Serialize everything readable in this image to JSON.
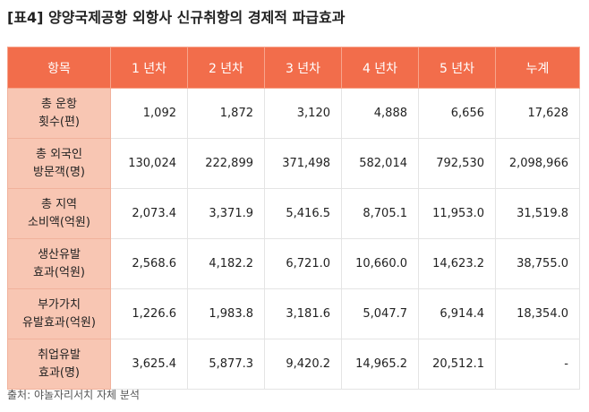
{
  "title": "[표4] 양양국제공항 외항사 신규취항의 경제적 파급효과",
  "table": {
    "header": [
      "항목",
      "1 년차",
      "2 년차",
      "3 년차",
      "4 년차",
      "5 년차",
      "누계"
    ],
    "rows": [
      [
        [
          "총 운항",
          "횟수(편)"
        ],
        "1,092",
        "1,872",
        "3,120",
        "4,888",
        "6,656",
        "17,628"
      ],
      [
        [
          "총 외국인",
          "방문객(명)"
        ],
        "130,024",
        "222,899",
        "371,498",
        "582,014",
        "792,530",
        "2,098,966"
      ],
      [
        [
          "총 지역",
          "소비액(억원)"
        ],
        "2,073.4",
        "3,371.9",
        "5,416.5",
        "8,705.1",
        "11,953.0",
        "31,519.8"
      ],
      [
        [
          "생산유발",
          "효과(억원)"
        ],
        "2,568.6",
        "4,182.2",
        "6,721.0",
        "10,660.0",
        "14,623.2",
        "38,755.0"
      ],
      [
        [
          "부가가치",
          "유발효과(억원)"
        ],
        "1,226.6",
        "1,983.8",
        "3,181.6",
        "5,047.7",
        "6,914.4",
        "18,354.0"
      ],
      [
        [
          "취업유발",
          "효과(명)"
        ],
        "3,625.4",
        "5,877.3",
        "9,420.2",
        "14,965.2",
        "20,512.1",
        "-"
      ]
    ]
  },
  "source": "출처: 야놀자리서치 자체 분석"
}
